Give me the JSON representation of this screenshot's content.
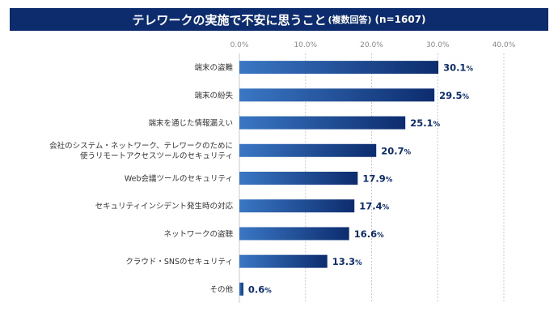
{
  "title": {
    "main": "テレワークの実施で不安に思うこと",
    "sub": "(複数回答)",
    "n": "(n=1607)"
  },
  "colors": {
    "title_bg": "#0d2c6e",
    "bar_start": "#3a77c4",
    "bar_end": "#0d2c6e",
    "value_text": "#0d2c6e"
  },
  "chart_data": {
    "type": "bar",
    "orientation": "horizontal",
    "x_ticks": [
      "0.0%",
      "10.0%",
      "20.0%",
      "30.0%",
      "40.0%"
    ],
    "xlim": [
      0,
      40
    ],
    "grid": "vertical dashed",
    "categories": [
      "端末の盗難",
      "端末の紛失",
      "端末を通じた情報漏えい",
      "会社のシステム・ネットワーク、テレワークのために\n使うリモートアクセスツールのセキュリティ",
      "Web会議ツールのセキュリティ",
      "セキュリティインシデント発生時の対応",
      "ネットワークの盗聴",
      "クラウド・SNSのセキュリティ",
      "その他"
    ],
    "values": [
      30.1,
      29.5,
      25.1,
      20.7,
      17.9,
      17.4,
      16.6,
      13.3,
      0.6
    ],
    "value_unit": "%"
  }
}
